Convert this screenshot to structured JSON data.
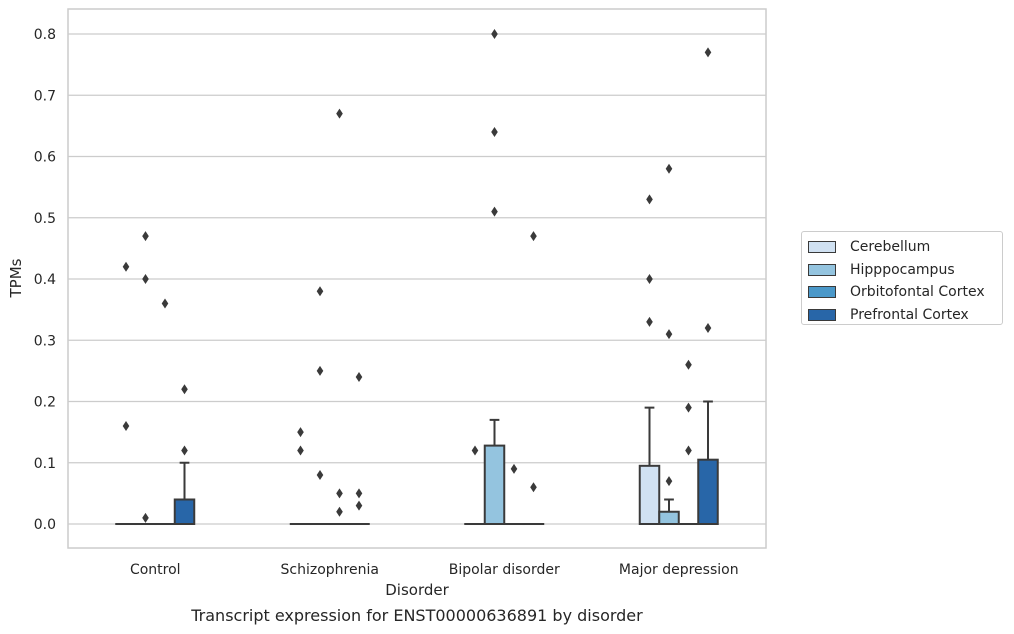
{
  "chart_data": {
    "type": "box",
    "caption": "Transcript expression for ENST00000636891 by disorder",
    "xlabel": "Disorder",
    "ylabel": "TPMs",
    "ylim": [
      -0.04,
      0.84
    ],
    "yticks": [
      0.0,
      0.1,
      0.2,
      0.3,
      0.4,
      0.5,
      0.6,
      0.7,
      0.8
    ],
    "ytick_labels": [
      "0.0",
      "0.1",
      "0.2",
      "0.3",
      "0.4",
      "0.5",
      "0.6",
      "0.7",
      "0.8"
    ],
    "grid": "horizontal",
    "legend_position": "right",
    "categories": [
      "Control",
      "Schizophrenia",
      "Bipolar disorder",
      "Major depression"
    ],
    "series": [
      {
        "name": "Cerebellum",
        "color": "#d0e1f2",
        "boxes": [
          {
            "q1": 0,
            "median": 0,
            "q3": 0,
            "whisker_low": 0,
            "whisker_high": 0,
            "outliers": [
              0.42,
              0.16
            ]
          },
          {
            "q1": 0,
            "median": 0,
            "q3": 0,
            "whisker_low": 0,
            "whisker_high": 0,
            "outliers": [
              0.15,
              0.12
            ]
          },
          {
            "q1": 0,
            "median": 0,
            "q3": 0,
            "whisker_low": 0,
            "whisker_high": 0,
            "outliers": [
              0.12
            ]
          },
          {
            "q1": 0,
            "median": 0,
            "q3": 0.095,
            "whisker_low": 0,
            "whisker_high": 0.19,
            "outliers": [
              0.53,
              0.4,
              0.33
            ]
          }
        ]
      },
      {
        "name": "Hipppocampus",
        "color": "#94c4df",
        "boxes": [
          {
            "q1": 0,
            "median": 0,
            "q3": 0,
            "whisker_low": 0,
            "whisker_high": 0,
            "outliers": [
              0.47,
              0.4,
              0.01
            ]
          },
          {
            "q1": 0,
            "median": 0,
            "q3": 0,
            "whisker_low": 0,
            "whisker_high": 0,
            "outliers": [
              0.38,
              0.25,
              0.08
            ]
          },
          {
            "q1": 0,
            "median": 0,
            "q3": 0.128,
            "whisker_low": 0,
            "whisker_high": 0.17,
            "outliers": [
              0.8,
              0.64,
              0.51
            ]
          },
          {
            "q1": 0,
            "median": 0,
            "q3": 0.02,
            "whisker_low": 0,
            "whisker_high": 0.04,
            "outliers": [
              0.58,
              0.31,
              0.07
            ]
          }
        ]
      },
      {
        "name": "Orbitofontal Cortex",
        "color": "#4a98c9",
        "boxes": [
          {
            "q1": 0,
            "median": 0,
            "q3": 0,
            "whisker_low": 0,
            "whisker_high": 0,
            "outliers": [
              0.36
            ]
          },
          {
            "q1": 0,
            "median": 0,
            "q3": 0,
            "whisker_low": 0,
            "whisker_high": 0,
            "outliers": [
              0.67,
              0.05,
              0.02
            ]
          },
          {
            "q1": 0,
            "median": 0,
            "q3": 0,
            "whisker_low": 0,
            "whisker_high": 0,
            "outliers": [
              0.09
            ]
          },
          {
            "q1": 0,
            "median": 0,
            "q3": 0,
            "whisker_low": 0,
            "whisker_high": 0,
            "outliers": [
              0.26,
              0.19,
              0.12
            ]
          }
        ]
      },
      {
        "name": "Prefrontal Cortex",
        "color": "#2866a8",
        "boxes": [
          {
            "q1": 0,
            "median": 0,
            "q3": 0.04,
            "whisker_low": 0,
            "whisker_high": 0.1,
            "outliers": [
              0.22,
              0.12
            ]
          },
          {
            "q1": 0,
            "median": 0,
            "q3": 0,
            "whisker_low": 0,
            "whisker_high": 0,
            "outliers": [
              0.24,
              0.05,
              0.03
            ]
          },
          {
            "q1": 0,
            "median": 0,
            "q3": 0,
            "whisker_low": 0,
            "whisker_high": 0,
            "outliers": [
              0.47,
              0.06
            ]
          },
          {
            "q1": 0,
            "median": 0,
            "q3": 0.105,
            "whisker_low": 0,
            "whisker_high": 0.2,
            "outliers": [
              0.77,
              0.32
            ]
          }
        ]
      }
    ]
  }
}
